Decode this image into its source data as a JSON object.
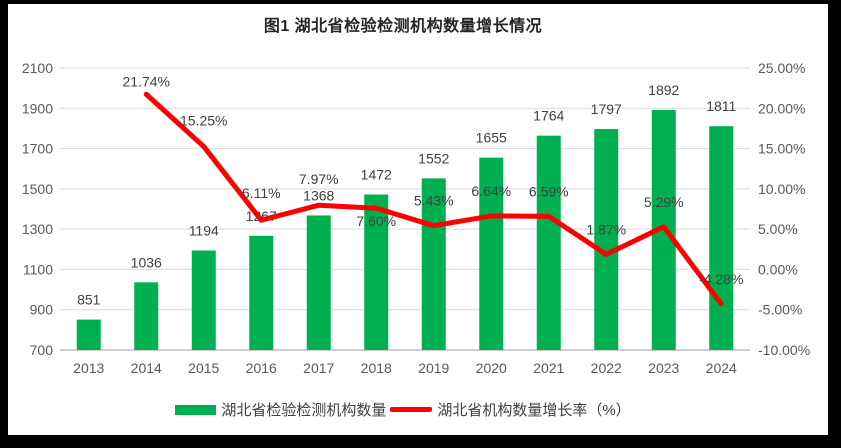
{
  "title": "图1 湖北省检验检测机构数量增长情况",
  "colors": {
    "bar": "#00B050",
    "line": "#FF0000",
    "grid": "#D9D9D9",
    "axis_line": "#BFBFBF",
    "tick_text": "#595959",
    "label_text": "#404040",
    "title_text": "#262626",
    "frame": "#000000"
  },
  "chart_data": {
    "type": "bar",
    "subtype": "bar+line combo, dual axis",
    "title": "图1 湖北省检验检测机构数量增长情况",
    "categories": [
      "2013",
      "2014",
      "2015",
      "2016",
      "2017",
      "2018",
      "2019",
      "2020",
      "2021",
      "2022",
      "2023",
      "2024"
    ],
    "series": [
      {
        "name": "湖北省检验检测机构数量",
        "type": "bar",
        "axis": "left",
        "values": [
          851,
          1036,
          1194,
          1267,
          1368,
          1472,
          1552,
          1655,
          1764,
          1797,
          1892,
          1811
        ]
      },
      {
        "name": "湖北省机构数量增长率（%）",
        "type": "line",
        "axis": "right",
        "values": [
          null,
          21.74,
          15.25,
          6.11,
          7.97,
          7.6,
          5.43,
          6.64,
          6.59,
          1.87,
          5.29,
          -4.28
        ]
      }
    ],
    "left_axis": {
      "min": 700,
      "max": 2100,
      "step": 200,
      "ticks": [
        "700",
        "900",
        "1100",
        "1300",
        "1500",
        "1700",
        "1900",
        "2100"
      ]
    },
    "right_axis": {
      "min": -10,
      "max": 25,
      "step": 5,
      "ticks": [
        "-10.00%",
        "-5.00%",
        "0.00%",
        "5.00%",
        "10.00%",
        "15.00%",
        "20.00%",
        "25.00%"
      ]
    },
    "grid": true,
    "legend_position": "bottom",
    "label_offsets_line": [
      null,
      -13,
      -26,
      -27,
      -26,
      13,
      -25,
      -25,
      -25,
      -25,
      -25,
      -25
    ]
  }
}
